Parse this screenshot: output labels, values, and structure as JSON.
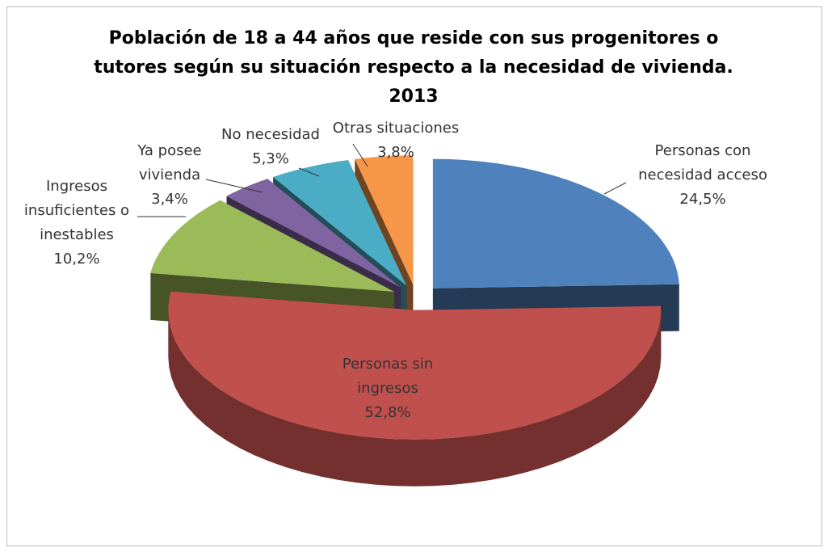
{
  "chart_data": {
    "type": "pie3d",
    "title": "Población de 18 a 44 años que reside con sus progenitores o tutores según su situación respecto a la necesidad de vivienda. 2013",
    "categories": [
      "Personas con necesidad acceso",
      "Personas sin ingresos",
      "Ingresos insuficientes o inestables",
      "Ya posee vivienda",
      "No necesidad",
      "Otras situaciones"
    ],
    "values": [
      24.5,
      52.8,
      10.2,
      3.4,
      5.3,
      3.8
    ],
    "value_labels": [
      "24,5%",
      "52,8%",
      "10,2%",
      "3,4%",
      "5,3%",
      "3,8%"
    ],
    "colors": [
      "#4f81bd",
      "#c0504d",
      "#9bbb59",
      "#8064a2",
      "#4bacc6",
      "#f79646"
    ]
  }
}
